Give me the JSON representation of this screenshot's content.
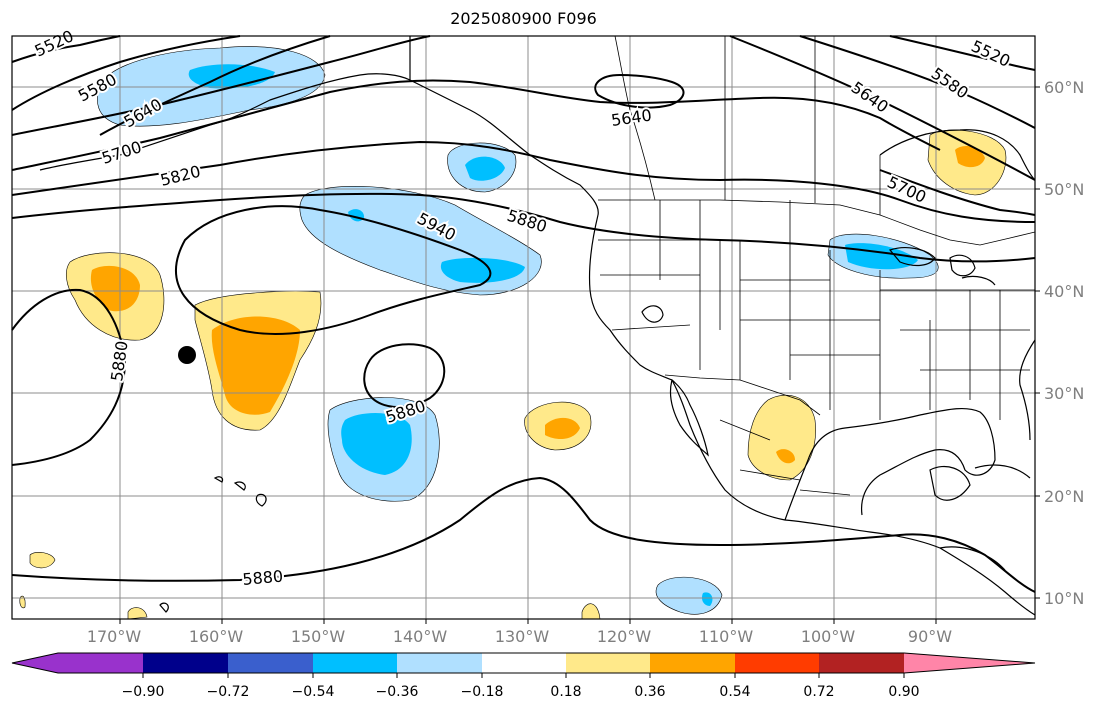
{
  "title": "2025080900 F096",
  "lat_labels": [
    "60°N",
    "50°N",
    "40°N",
    "30°N",
    "20°N",
    "10°N"
  ],
  "lon_labels": [
    "170°W",
    "160°W",
    "150°W",
    "140°W",
    "130°W",
    "120°W",
    "110°W",
    "100°W",
    "90°W"
  ],
  "height_contour_labels": [
    "5520",
    "5580",
    "5640",
    "5700",
    "5820",
    "5880",
    "5940",
    "5880",
    "5880",
    "5880",
    "5640",
    "5640",
    "5700",
    "5580",
    "5520"
  ],
  "colorbar": {
    "ticks": [
      "−0.90",
      "−0.72",
      "−0.54",
      "−0.36",
      "−0.18",
      "0.18",
      "0.36",
      "0.54",
      "0.72",
      "0.90"
    ],
    "colors": [
      "#9932cc",
      "#00008b",
      "#3a5fcd",
      "#00bfff",
      "#b0e0ff",
      "#ffffff",
      "#ffe98a",
      "#ffa500",
      "#ff3c00",
      "#b22222",
      "#ff85a8"
    ]
  },
  "fill_colors": {
    "light_blue": "#b0e0ff",
    "blue": "#00bfff",
    "light_yellow": "#ffe98a",
    "orange": "#ffa500"
  }
}
